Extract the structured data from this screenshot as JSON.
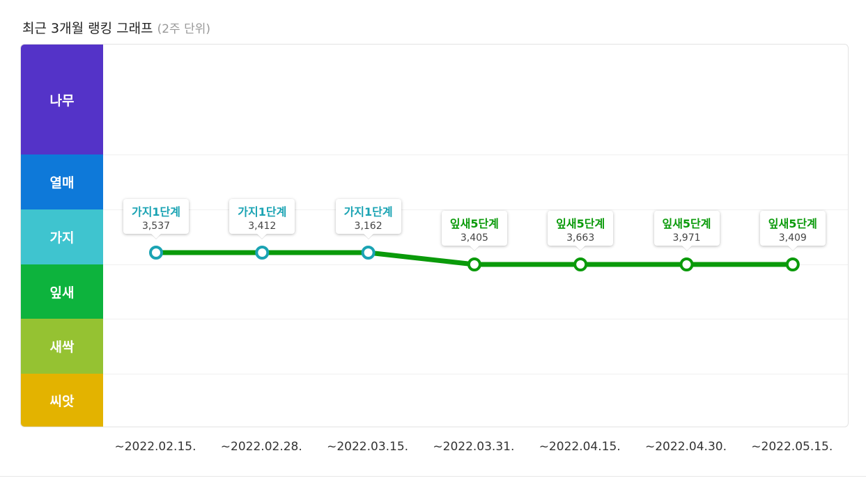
{
  "header": {
    "title": "최근 3개월 랭킹 그래프",
    "subtitle": "(2주 단위)"
  },
  "colors": {
    "teal_series": "#1aa3b3",
    "green_series": "#0a9a0a",
    "grid": "#f0f0f0"
  },
  "chart_data": {
    "type": "line",
    "title": "최근 3개월 랭킹 그래프",
    "subtitle": "(2주 단위)",
    "y_categories_top_to_bottom": [
      {
        "label": "나무",
        "color": "#5433c8"
      },
      {
        "label": "열매",
        "color": "#0e79d9"
      },
      {
        "label": "가지",
        "color": "#3fc4cf"
      },
      {
        "label": "잎새",
        "color": "#0db33d"
      },
      {
        "label": "새싹",
        "color": "#95c232"
      },
      {
        "label": "씨앗",
        "color": "#e3b300"
      }
    ],
    "categories": [
      "~2022.02.15.",
      "~2022.02.28.",
      "~2022.03.15.",
      "~2022.03.31.",
      "~2022.04.15.",
      "~2022.04.30.",
      "~2022.05.15."
    ],
    "points": [
      {
        "date": "~2022.02.15.",
        "category": "가지",
        "level_label": "가지1단계",
        "rank": "3,537"
      },
      {
        "date": "~2022.02.28.",
        "category": "가지",
        "level_label": "가지1단계",
        "rank": "3,412"
      },
      {
        "date": "~2022.03.15.",
        "category": "가지",
        "level_label": "가지1단계",
        "rank": "3,162"
      },
      {
        "date": "~2022.03.31.",
        "category": "잎새",
        "level_label": "잎새5단계",
        "rank": "3,405"
      },
      {
        "date": "~2022.04.15.",
        "category": "잎새",
        "level_label": "잎새5단계",
        "rank": "3,663"
      },
      {
        "date": "~2022.04.30.",
        "category": "잎새",
        "level_label": "잎새5단계",
        "rank": "3,971"
      },
      {
        "date": "~2022.05.15.",
        "category": "잎새",
        "level_label": "잎새5단계",
        "rank": "3,409"
      }
    ],
    "grid": true
  }
}
